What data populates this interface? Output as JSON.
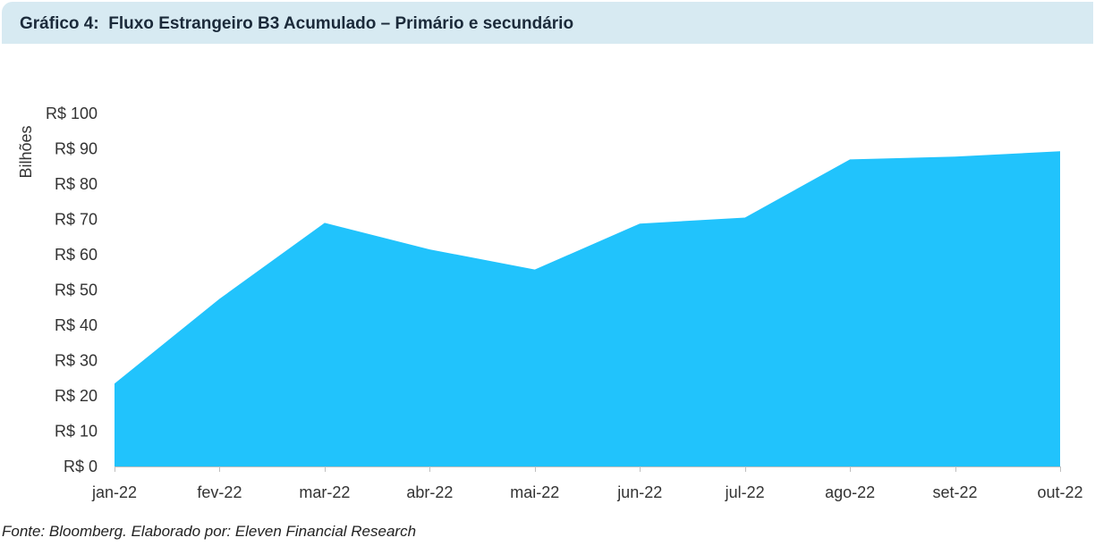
{
  "header": {
    "title": "Gráfico 4:  Fluxo Estrangeiro B3 Acumulado – Primário e secundário"
  },
  "footer": {
    "source": "Fonte: Bloomberg. Elaborado por: Eleven Financial Research"
  },
  "colors": {
    "area": "#21c3fc",
    "title_bg": "#d7eaf2",
    "axis": "#bfbfbf",
    "text": "#333333"
  },
  "chart_data": {
    "type": "area",
    "title": "",
    "xlabel": "",
    "ylabel": "Bilhões",
    "ylim": [
      0,
      100
    ],
    "yticks": [
      "R$ 0",
      "R$ 10",
      "R$ 20",
      "R$ 30",
      "R$ 40",
      "R$ 50",
      "R$ 60",
      "R$ 70",
      "R$ 80",
      "R$ 90",
      "R$ 100"
    ],
    "grid": false,
    "legend": "none",
    "categories": [
      "jan-22",
      "fev-22",
      "mar-22",
      "abr-22",
      "mai-22",
      "jun-22",
      "jul-22",
      "ago-22",
      "set-22",
      "out-22"
    ],
    "series": [
      {
        "values": [
          23.5,
          47.5,
          69,
          61.5,
          55.8,
          68.8,
          70.5,
          87,
          87.8,
          89.3
        ]
      }
    ]
  }
}
